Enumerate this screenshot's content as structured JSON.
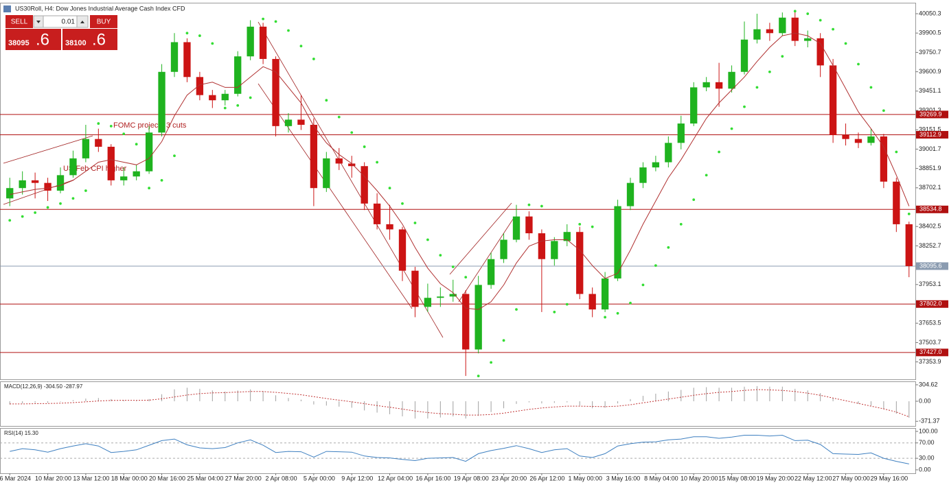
{
  "toolbar": {
    "title": "US30Roll, H4:  Dow Jones Industrial Average Cash Index CFD",
    "sell": "SELL",
    "buy": "BUY",
    "lot": "0.01",
    "bid_main": "38095",
    "bid_frac": ".6",
    "ask_main": "38100",
    "ask_frac": ".6"
  },
  "chart_data": [
    {
      "type": "candlestick",
      "categories": [
        "6 Mar 2024",
        null,
        null,
        "10 Mar 20:00",
        null,
        null,
        "13 Mar 12:00",
        null,
        null,
        "18 Mar 00:00",
        null,
        null,
        "20 Mar 16:00",
        null,
        null,
        "25 Mar 04:00",
        null,
        null,
        "27 Mar 20:00",
        null,
        null,
        "2 Apr 08:00",
        null,
        null,
        "5 Apr 00:00",
        null,
        null,
        "9 Apr 12:00",
        null,
        null,
        "12 Apr 04:00",
        null,
        null,
        "16 Apr 16:00",
        null,
        null,
        "19 Apr 08:00",
        null,
        null,
        "23 Apr 20:00",
        null,
        null,
        "26 Apr 12:00",
        null,
        null,
        "1 May 00:00",
        null,
        null,
        "3 May 16:00",
        null,
        null,
        "8 May 04:00",
        null,
        null,
        "10 May 20:00",
        null,
        null,
        "15 May 08:00",
        null,
        null,
        "19 May 20:00",
        null,
        null,
        "22 May 12:00",
        null,
        null,
        "27 May 00:00",
        null,
        null,
        "29 May 16:00",
        null,
        null
      ],
      "open": [
        38620,
        38700,
        38760,
        38740,
        38680,
        38800,
        38930,
        39080,
        39020,
        38760,
        38790,
        38830,
        39130,
        39600,
        39830,
        39560,
        39420,
        39380,
        39430,
        39720,
        39950,
        39700,
        39180,
        39230,
        39190,
        38700,
        38930,
        38890,
        38870,
        38580,
        38420,
        38380,
        38060,
        37780,
        37850,
        37860,
        37880,
        37450,
        37950,
        38150,
        38300,
        38480,
        38350,
        38150,
        38290,
        38360,
        37880,
        37760,
        38000,
        38560,
        38740,
        38860,
        38900,
        39050,
        39200,
        39480,
        39520,
        39470,
        39600,
        39850,
        39930,
        39900,
        40020,
        39840,
        39860,
        39650,
        39110,
        39080,
        39050,
        39100,
        38750,
        38420
      ],
      "high": [
        38780,
        38830,
        38820,
        38780,
        38860,
        38990,
        39190,
        39160,
        39040,
        38860,
        38880,
        39180,
        39660,
        39900,
        39860,
        39600,
        39460,
        39460,
        39760,
        40000,
        39980,
        39720,
        39280,
        39420,
        39240,
        38980,
        39010,
        38950,
        38900,
        38660,
        38570,
        38400,
        38090,
        37960,
        37930,
        37990,
        37910,
        38020,
        38200,
        38350,
        38570,
        38520,
        38380,
        38320,
        38420,
        38400,
        37930,
        38050,
        38610,
        38780,
        38900,
        38950,
        39100,
        39260,
        39520,
        39560,
        39670,
        39650,
        39990,
        40050,
        39980,
        40060,
        40070,
        39920,
        39900,
        39700,
        39200,
        39130,
        39160,
        39120,
        38780,
        38440
      ],
      "low": [
        38560,
        38650,
        38620,
        38600,
        38660,
        38780,
        38900,
        38980,
        38720,
        38720,
        38760,
        38810,
        39100,
        39560,
        39520,
        39380,
        39320,
        39340,
        39410,
        39690,
        39660,
        39100,
        39130,
        39150,
        38560,
        38670,
        38840,
        38780,
        38530,
        38380,
        38300,
        37980,
        37700,
        37740,
        37780,
        37820,
        37245,
        37420,
        37920,
        38120,
        38280,
        38300,
        37740,
        38100,
        38250,
        37840,
        37700,
        37740,
        37980,
        38530,
        38700,
        38830,
        38860,
        39000,
        39180,
        39450,
        39330,
        39440,
        39580,
        39820,
        39840,
        39880,
        39800,
        39790,
        39560,
        39050,
        39030,
        39010,
        39030,
        38700,
        38360,
        38010
      ],
      "close": [
        38700,
        38760,
        38740,
        38680,
        38800,
        38930,
        39080,
        39020,
        38760,
        38790,
        38830,
        39130,
        39600,
        39830,
        39560,
        39420,
        39380,
        39430,
        39720,
        39950,
        39700,
        39180,
        39230,
        39190,
        38700,
        38930,
        38890,
        38870,
        38580,
        38420,
        38380,
        38060,
        37780,
        37850,
        37860,
        37880,
        37450,
        37950,
        38150,
        38300,
        38480,
        38350,
        38150,
        38290,
        38360,
        37880,
        37760,
        38000,
        38560,
        38740,
        38860,
        38900,
        39050,
        39200,
        39480,
        39520,
        39470,
        39600,
        39850,
        39930,
        39900,
        40020,
        39840,
        39860,
        39650,
        39110,
        39080,
        39050,
        39100,
        38750,
        38420,
        38095.6
      ],
      "up_color": "#1fb31f",
      "down_color": "#cc1414",
      "series": [
        {
          "style": "dots",
          "color": "#33dd33",
          "values": [
            38450,
            38480,
            38510,
            38550,
            38580,
            38620,
            38680,
            39200,
            39180,
            39120,
            39040,
            38700,
            38760,
            38950,
            39900,
            39880,
            39820,
            39320,
            39340,
            39400,
            40010,
            39990,
            39920,
            39800,
            39700,
            39380,
            39250,
            39130,
            39020,
            38900,
            38700,
            38580,
            38430,
            38300,
            38180,
            38090,
            38010,
            37245,
            37350,
            37520,
            37760,
            38570,
            38560,
            37740,
            37800,
            38420,
            38400,
            37700,
            37730,
            37810,
            37950,
            38100,
            38240,
            38420,
            38610,
            38800,
            38980,
            39160,
            39330,
            39480,
            39600,
            39720,
            40070,
            40050,
            40000,
            39930,
            39820,
            39660,
            39480,
            39300,
            38980,
            38500
          ]
        },
        {
          "style": "line",
          "color": "#b03030",
          "values": [
            38650,
            38670,
            38690,
            38700,
            38720,
            38760,
            38830,
            38900,
            38920,
            38900,
            38880,
            38930,
            39060,
            39260,
            39420,
            39500,
            39520,
            39480,
            39480,
            39560,
            39640,
            39600,
            39480,
            39360,
            39180,
            39050,
            38960,
            38890,
            38790,
            38680,
            38560,
            38420,
            38240,
            38080,
            37960,
            37890,
            37770,
            37760,
            37820,
            37950,
            38120,
            38250,
            38290,
            38300,
            38300,
            38220,
            38100,
            38000,
            38040,
            38220,
            38420,
            38600,
            38780,
            38920,
            39080,
            39240,
            39360,
            39460,
            39560,
            39680,
            39790,
            39880,
            39900,
            39880,
            39820,
            39650,
            39470,
            39290,
            39160,
            39020,
            38800,
            38560
          ]
        }
      ],
      "levels": [
        39269.9,
        39112.9,
        38534.8,
        {
          "value": 37802.0,
          "label": "37802.0"
        },
        {
          "value": 37427.0,
          "label": "37427.0"
        }
      ],
      "level_color": "#b01010",
      "current_price": 38095.6,
      "current_color": "#8a9bb0",
      "annotations": [
        "FOMC projects 3 cuts",
        "US Feb CPI higher"
      ],
      "ylim": [
        37219,
        40130
      ],
      "yticks": [
        40050.3,
        39900.5,
        39750.7,
        39600.9,
        39451.1,
        39301.3,
        39151.5,
        39001.7,
        38851.9,
        38702.1,
        38402.5,
        38252.7,
        37953.1,
        37653.5,
        37503.7,
        37353.9
      ]
    },
    {
      "type": "macd",
      "title": "MACD(12,26,9) -304.50 -287.97",
      "series": [
        {
          "style": "histogram",
          "color": "#a0a0a0",
          "values": [
            -60,
            -40,
            -30,
            -30,
            -10,
            20,
            50,
            60,
            40,
            20,
            10,
            40,
            130,
            220,
            250,
            230,
            200,
            180,
            200,
            220,
            190,
            110,
            60,
            30,
            -60,
            -80,
            -100,
            -120,
            -170,
            -210,
            -240,
            -280,
            -320,
            -320,
            -300,
            -280,
            -320,
            -270,
            -200,
            -130,
            -50,
            -20,
            -40,
            -30,
            -20,
            -80,
            -130,
            -120,
            -40,
            40,
            100,
            140,
            180,
            210,
            250,
            260,
            250,
            250,
            270,
            280,
            270,
            270,
            230,
            200,
            150,
            60,
            0,
            -50,
            -80,
            -150,
            -230,
            -304.5
          ]
        },
        {
          "style": "dashed",
          "color": "#c03030",
          "values": [
            -50,
            -50,
            -45,
            -42,
            -36,
            -25,
            -10,
            5,
            15,
            18,
            16,
            20,
            45,
            80,
            115,
            140,
            155,
            160,
            170,
            180,
            180,
            165,
            145,
            120,
            85,
            50,
            20,
            -10,
            -45,
            -80,
            -110,
            -145,
            -180,
            -210,
            -230,
            -240,
            -255,
            -255,
            -245,
            -220,
            -185,
            -150,
            -125,
            -105,
            -90,
            -90,
            -95,
            -100,
            -90,
            -65,
            -30,
            5,
            40,
            75,
            110,
            140,
            165,
            180,
            200,
            215,
            210,
            200,
            180,
            150,
            110,
            60,
            10,
            -40,
            -90,
            -140,
            -200,
            -287.97
          ]
        }
      ],
      "ylim": [
        -457,
        355
      ],
      "yticks": [
        304.62,
        {
          "value": 0,
          "label": "0.00"
        },
        -371.37
      ]
    },
    {
      "type": "line",
      "title": "RSI(14) 15.30",
      "series": [
        {
          "style": "line",
          "color": "#3d7fc0",
          "values": [
            48,
            55,
            52,
            46,
            55,
            62,
            68,
            62,
            45,
            48,
            52,
            64,
            76,
            80,
            65,
            57,
            55,
            58,
            70,
            78,
            64,
            45,
            48,
            47,
            33,
            48,
            47,
            46,
            36,
            32,
            31,
            27,
            24,
            30,
            31,
            32,
            22,
            42,
            50,
            56,
            63,
            55,
            45,
            52,
            55,
            36,
            32,
            42,
            62,
            68,
            72,
            73,
            78,
            80,
            86,
            86,
            82,
            85,
            90,
            90,
            88,
            90,
            76,
            77,
            66,
            42,
            41,
            40,
            44,
            30,
            22,
            15.3
          ]
        }
      ],
      "levels": [
        70,
        30
      ],
      "ylim": [
        -9,
        107
      ],
      "yticks": [
        {
          "value": 100,
          "label": "100.00"
        },
        {
          "value": 70,
          "label": "70.00"
        },
        {
          "value": 30,
          "label": "30.00"
        },
        {
          "value": 0,
          "label": "0.00"
        }
      ]
    }
  ]
}
